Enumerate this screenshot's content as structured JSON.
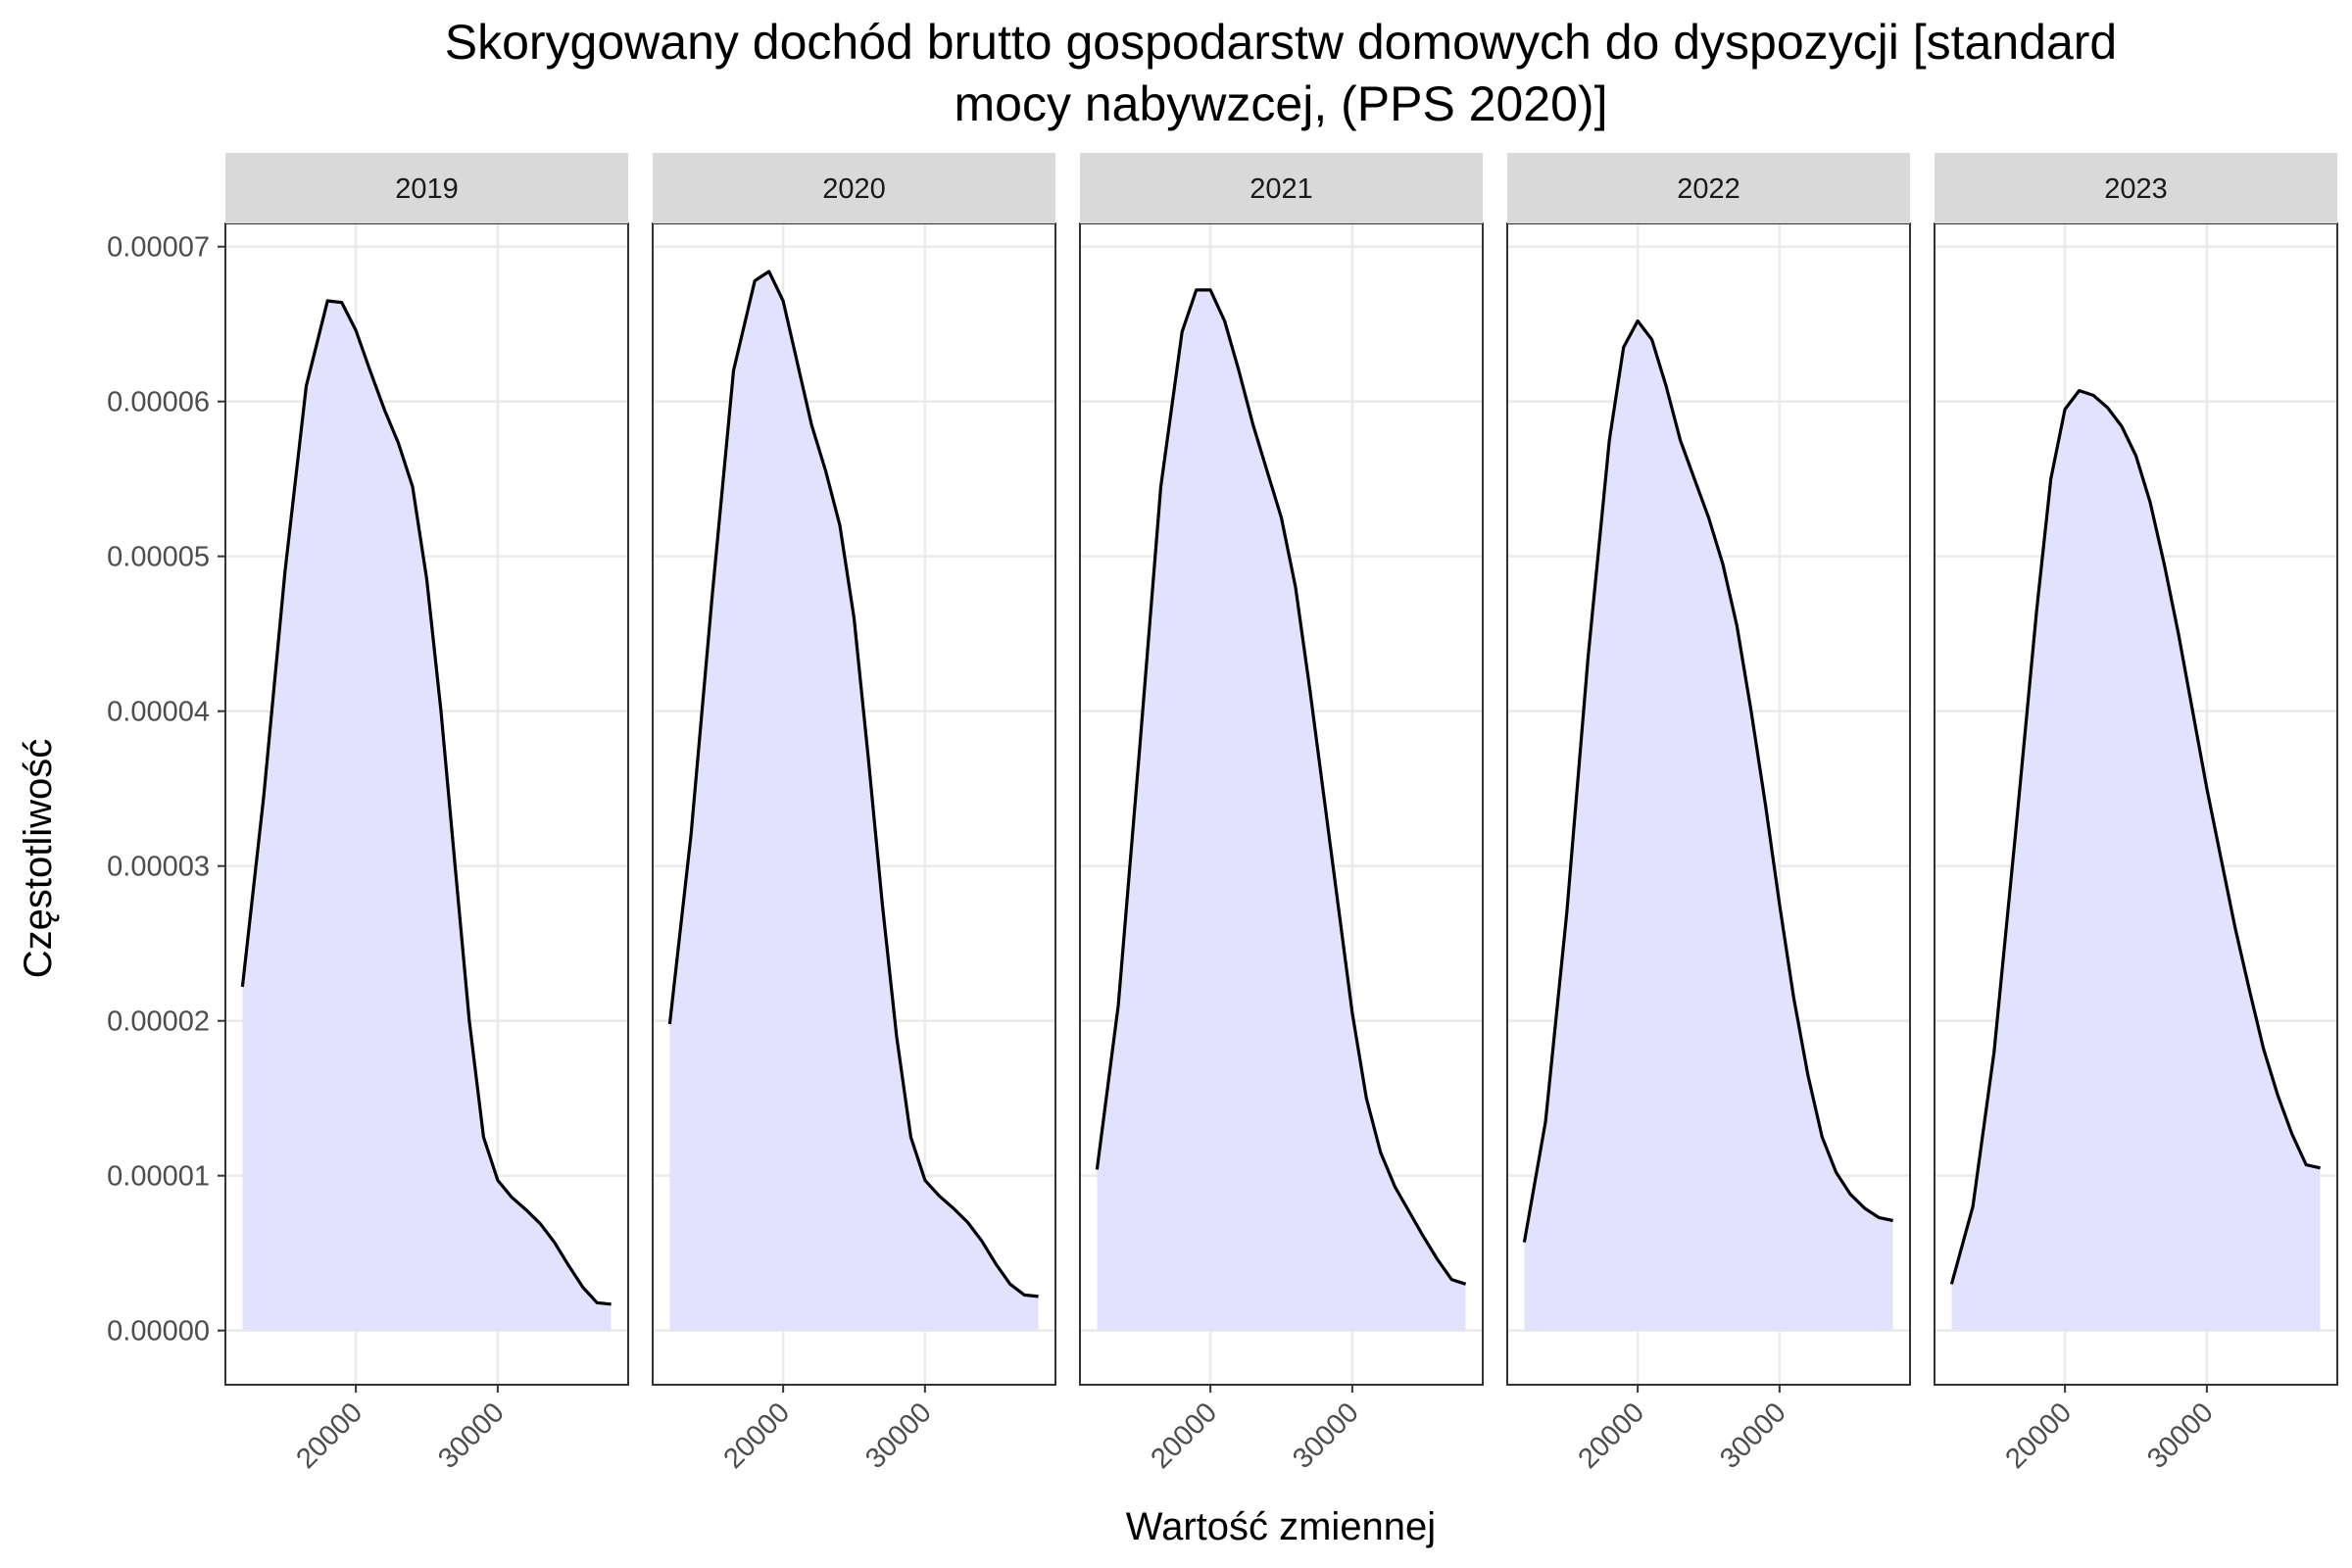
{
  "chart_data": {
    "type": "area",
    "title_lines": [
      "Skorygowany dochód brutto gospodarstw domowych do dyspozycji [standard",
      "mocy nabywzcej, (PPS 2020)]"
    ],
    "xlabel": "Wartość zmiennej",
    "ylabel": "Częstotliwość",
    "xlim": [
      10800,
      39200
    ],
    "ylim": [
      -3.5e-06,
      7.15e-05
    ],
    "x_ticks": [
      20000,
      30000
    ],
    "x_tick_labels": [
      "20000",
      "30000"
    ],
    "y_ticks": [
      0,
      1e-05,
      2e-05,
      3e-05,
      4e-05,
      5e-05,
      6e-05,
      7e-05
    ],
    "y_tick_labels": [
      "0.00000",
      "0.00001",
      "0.00002",
      "0.00003",
      "0.00004",
      "0.00005",
      "0.00006",
      "0.00007"
    ],
    "grid": true,
    "fill_color": "#e2e2fe",
    "line_color": "#000000",
    "strip_color": "#d9d9d9",
    "panels": [
      {
        "label": "2019",
        "x": [
          12000,
          13500,
          15000,
          16500,
          18000,
          19000,
          20000,
          21000,
          22000,
          23000,
          24000,
          25000,
          26000,
          27000,
          28000,
          29000,
          30000,
          31000,
          32000,
          33000,
          34000,
          35000,
          36000,
          37000,
          38000
        ],
        "y": [
          2.22e-05,
          3.45e-05,
          4.9e-05,
          6.1e-05,
          6.65e-05,
          6.64e-05,
          6.46e-05,
          6.2e-05,
          5.95e-05,
          5.73e-05,
          5.45e-05,
          4.85e-05,
          4e-05,
          3e-05,
          2e-05,
          1.25e-05,
          9.7e-06,
          8.6e-06,
          7.8e-06,
          6.9e-06,
          5.7e-06,
          4.2e-06,
          2.8e-06,
          1.8e-06,
          1.7e-06
        ]
      },
      {
        "label": "2020",
        "x": [
          12000,
          13500,
          15000,
          16500,
          18000,
          19000,
          20000,
          21000,
          22000,
          23000,
          24000,
          25000,
          26000,
          27000,
          28000,
          29000,
          30000,
          31000,
          32000,
          33000,
          34000,
          35000,
          36000,
          37000,
          38000
        ],
        "y": [
          1.98e-05,
          3.2e-05,
          4.75e-05,
          6.2e-05,
          6.78e-05,
          6.84e-05,
          6.65e-05,
          6.25e-05,
          5.85e-05,
          5.55e-05,
          5.2e-05,
          4.6e-05,
          3.7e-05,
          2.75e-05,
          1.9e-05,
          1.25e-05,
          9.7e-06,
          8.7e-06,
          7.9e-06,
          7e-06,
          5.8e-06,
          4.3e-06,
          3e-06,
          2.3e-06,
          2.2e-06
        ]
      },
      {
        "label": "2021",
        "x": [
          12000,
          13500,
          15000,
          16500,
          18000,
          19000,
          20000,
          21000,
          22000,
          23000,
          24000,
          25000,
          26000,
          27000,
          28000,
          29000,
          30000,
          31000,
          32000,
          33000,
          34000,
          35000,
          36000,
          37000,
          38000
        ],
        "y": [
          1.04e-05,
          2.1e-05,
          3.75e-05,
          5.45e-05,
          6.45e-05,
          6.72e-05,
          6.72e-05,
          6.52e-05,
          6.2e-05,
          5.85e-05,
          5.55e-05,
          5.25e-05,
          4.8e-05,
          4.15e-05,
          3.45e-05,
          2.75e-05,
          2.05e-05,
          1.5e-05,
          1.15e-05,
          9.3e-06,
          7.7e-06,
          6.1e-06,
          4.6e-06,
          3.3e-06,
          3e-06
        ]
      },
      {
        "label": "2022",
        "x": [
          12000,
          13500,
          15000,
          16500,
          18000,
          19000,
          20000,
          21000,
          22000,
          23000,
          24000,
          25000,
          26000,
          27000,
          28000,
          29000,
          30000,
          31000,
          32000,
          33000,
          34000,
          35000,
          36000,
          37000,
          38000
        ],
        "y": [
          5.7e-06,
          1.35e-05,
          2.7e-05,
          4.35e-05,
          5.75e-05,
          6.35e-05,
          6.52e-05,
          6.4e-05,
          6.1e-05,
          5.75e-05,
          5.5e-05,
          5.25e-05,
          4.95e-05,
          4.55e-05,
          4e-05,
          3.4e-05,
          2.75e-05,
          2.15e-05,
          1.65e-05,
          1.25e-05,
          1.02e-05,
          8.8e-06,
          7.9e-06,
          7.3e-06,
          7.1e-06
        ]
      },
      {
        "label": "2023",
        "x": [
          12000,
          13500,
          15000,
          16500,
          18000,
          19000,
          20000,
          21000,
          22000,
          23000,
          24000,
          25000,
          26000,
          27000,
          28000,
          29000,
          30000,
          31000,
          32000,
          33000,
          34000,
          35000,
          36000,
          37000,
          38000
        ],
        "y": [
          3e-06,
          8e-06,
          1.8e-05,
          3.2e-05,
          4.65e-05,
          5.5e-05,
          5.95e-05,
          6.07e-05,
          6.04e-05,
          5.96e-05,
          5.84e-05,
          5.65e-05,
          5.35e-05,
          4.95e-05,
          4.5e-05,
          4e-05,
          3.5e-05,
          3.05e-05,
          2.6e-05,
          2.2e-05,
          1.82e-05,
          1.52e-05,
          1.27e-05,
          1.07e-05,
          1.05e-05
        ]
      }
    ]
  }
}
